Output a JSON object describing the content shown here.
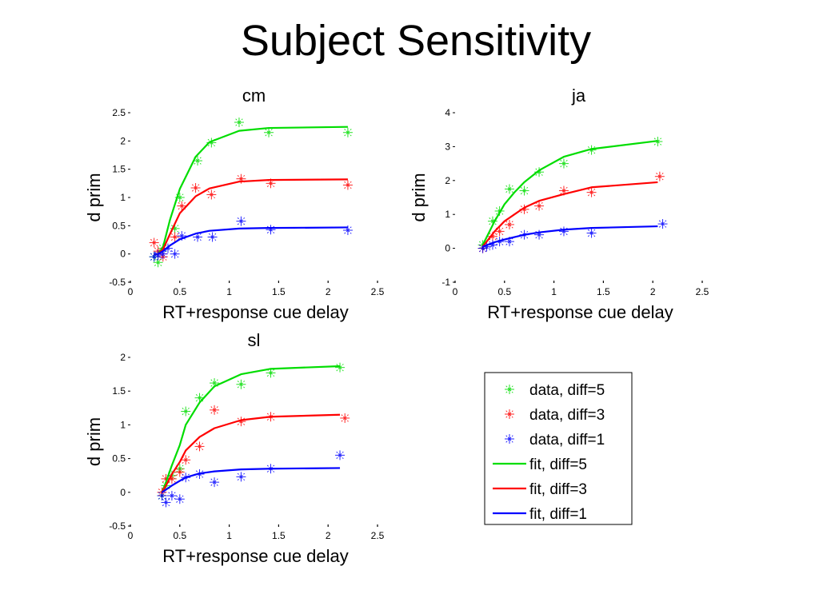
{
  "slide": {
    "title": "Subject Sensitivity"
  },
  "legend": {
    "entries": [
      {
        "label": "data, diff=5",
        "kind": "marker",
        "color": "#00dd00"
      },
      {
        "label": "data, diff=3",
        "kind": "marker",
        "color": "#ff0000"
      },
      {
        "label": "data, diff=1",
        "kind": "marker",
        "color": "#0000ff"
      },
      {
        "label": "fit, diff=5",
        "kind": "line",
        "color": "#00dd00"
      },
      {
        "label": "fit, diff=3",
        "kind": "line",
        "color": "#ff0000"
      },
      {
        "label": "fit, diff=1",
        "kind": "line",
        "color": "#0000ff"
      }
    ]
  },
  "colors": {
    "diff5": "#00dd00",
    "diff3": "#ff0000",
    "diff1": "#0000ff"
  },
  "chart_data": [
    {
      "id": "cm",
      "type": "line",
      "title": "cm",
      "xlabel": "RT+response cue delay",
      "ylabel": "d prim",
      "xlim": [
        0,
        2.5
      ],
      "ylim": [
        -0.5,
        2.5
      ],
      "xticks": [
        "0",
        "0.5",
        "1",
        "1.5",
        "2",
        "2.5"
      ],
      "yticks": [
        "-0.5",
        "0",
        "0.5",
        "1",
        "1.5",
        "2",
        "2.5"
      ],
      "series": [
        {
          "name": "data, diff=5",
          "kind": "points",
          "color": "#00dd00",
          "x": [
            0.24,
            0.28,
            0.33,
            0.45,
            0.5,
            0.68,
            0.82,
            1.1,
            1.4,
            2.2
          ],
          "y": [
            -0.05,
            -0.15,
            0.1,
            0.45,
            1.0,
            1.65,
            1.97,
            2.33,
            2.15,
            2.15
          ]
        },
        {
          "name": "data, diff=3",
          "kind": "points",
          "color": "#ff0000",
          "x": [
            0.24,
            0.28,
            0.33,
            0.45,
            0.52,
            0.66,
            0.82,
            1.12,
            1.42,
            2.2
          ],
          "y": [
            0.2,
            0.05,
            -0.05,
            0.3,
            0.85,
            1.17,
            1.05,
            1.33,
            1.25,
            1.22
          ]
        },
        {
          "name": "data, diff=1",
          "kind": "points",
          "color": "#0000ff",
          "x": [
            0.24,
            0.28,
            0.33,
            0.38,
            0.45,
            0.52,
            0.68,
            0.83,
            1.12,
            1.42,
            2.2
          ],
          "y": [
            -0.05,
            -0.02,
            0.0,
            0.1,
            0.0,
            0.32,
            0.3,
            0.3,
            0.58,
            0.43,
            0.42
          ]
        },
        {
          "name": "fit, diff=5",
          "kind": "line",
          "color": "#00dd00",
          "x": [
            0.24,
            0.28,
            0.33,
            0.4,
            0.5,
            0.66,
            0.8,
            1.1,
            1.4,
            2.2
          ],
          "y": [
            0.0,
            0.0,
            0.12,
            0.6,
            1.15,
            1.72,
            1.98,
            2.18,
            2.23,
            2.25
          ]
        },
        {
          "name": "fit, diff=3",
          "kind": "line",
          "color": "#ff0000",
          "x": [
            0.24,
            0.28,
            0.33,
            0.4,
            0.5,
            0.66,
            0.8,
            1.1,
            1.4,
            2.2
          ],
          "y": [
            0.0,
            0.0,
            0.08,
            0.35,
            0.72,
            1.02,
            1.16,
            1.28,
            1.31,
            1.32
          ]
        },
        {
          "name": "fit, diff=1",
          "kind": "line",
          "color": "#0000ff",
          "x": [
            0.24,
            0.28,
            0.33,
            0.4,
            0.5,
            0.66,
            0.8,
            1.1,
            1.4,
            2.2
          ],
          "y": [
            0.0,
            0.0,
            0.05,
            0.15,
            0.26,
            0.36,
            0.41,
            0.45,
            0.46,
            0.47
          ]
        }
      ]
    },
    {
      "id": "ja",
      "type": "line",
      "title": "ja",
      "xlabel": "RT+response cue delay",
      "ylabel": "d prim",
      "xlim": [
        0,
        2.5
      ],
      "ylim": [
        -1,
        4
      ],
      "xticks": [
        "0",
        "0.5",
        "1",
        "1.5",
        "2",
        "2.5"
      ],
      "yticks": [
        "-1",
        "0",
        "1",
        "2",
        "3",
        "4"
      ],
      "series": [
        {
          "name": "data, diff=5",
          "kind": "points",
          "color": "#00dd00",
          "x": [
            0.28,
            0.38,
            0.45,
            0.55,
            0.7,
            0.85,
            1.1,
            1.38,
            2.05
          ],
          "y": [
            0.1,
            0.8,
            1.1,
            1.75,
            1.7,
            2.25,
            2.5,
            2.9,
            3.15
          ]
        },
        {
          "name": "data, diff=3",
          "kind": "points",
          "color": "#ff0000",
          "x": [
            0.28,
            0.38,
            0.45,
            0.55,
            0.7,
            0.85,
            1.1,
            1.38,
            2.07
          ],
          "y": [
            0.0,
            0.35,
            0.5,
            0.7,
            1.15,
            1.25,
            1.7,
            1.65,
            2.12
          ]
        },
        {
          "name": "data, diff=1",
          "kind": "points",
          "color": "#0000ff",
          "x": [
            0.28,
            0.32,
            0.38,
            0.45,
            0.55,
            0.7,
            0.85,
            1.1,
            1.38,
            2.1
          ],
          "y": [
            0.0,
            0.05,
            0.1,
            0.2,
            0.2,
            0.4,
            0.4,
            0.5,
            0.45,
            0.72
          ]
        },
        {
          "name": "fit, diff=5",
          "kind": "line",
          "color": "#00dd00",
          "x": [
            0.28,
            0.4,
            0.5,
            0.6,
            0.7,
            0.85,
            1.1,
            1.38,
            2.05
          ],
          "y": [
            0.1,
            0.8,
            1.3,
            1.65,
            1.95,
            2.3,
            2.7,
            2.93,
            3.17
          ]
        },
        {
          "name": "fit, diff=3",
          "kind": "line",
          "color": "#ff0000",
          "x": [
            0.28,
            0.4,
            0.5,
            0.6,
            0.7,
            0.85,
            1.1,
            1.38,
            2.05
          ],
          "y": [
            0.05,
            0.5,
            0.8,
            1.0,
            1.2,
            1.4,
            1.6,
            1.8,
            1.95
          ]
        },
        {
          "name": "fit, diff=1",
          "kind": "line",
          "color": "#0000ff",
          "x": [
            0.28,
            0.4,
            0.5,
            0.6,
            0.7,
            0.85,
            1.1,
            1.38,
            2.05
          ],
          "y": [
            0.05,
            0.18,
            0.26,
            0.33,
            0.4,
            0.47,
            0.55,
            0.6,
            0.65
          ]
        }
      ]
    },
    {
      "id": "sl",
      "type": "line",
      "title": "sl",
      "xlabel": "RT+response cue delay",
      "ylabel": "d prim",
      "xlim": [
        0,
        2.5
      ],
      "ylim": [
        -0.5,
        2
      ],
      "xticks": [
        "0",
        "0.5",
        "1",
        "1.5",
        "2",
        "2.5"
      ],
      "yticks": [
        "-0.5",
        "0",
        "0.5",
        "1",
        "1.5",
        "2"
      ],
      "series": [
        {
          "name": "data, diff=5",
          "kind": "points",
          "color": "#00dd00",
          "x": [
            0.32,
            0.36,
            0.42,
            0.5,
            0.56,
            0.7,
            0.85,
            1.12,
            1.42,
            2.12
          ],
          "y": [
            -0.05,
            0.1,
            0.25,
            0.35,
            1.2,
            1.4,
            1.62,
            1.6,
            1.77,
            1.85
          ]
        },
        {
          "name": "data, diff=3",
          "kind": "points",
          "color": "#ff0000",
          "x": [
            0.32,
            0.36,
            0.42,
            0.5,
            0.56,
            0.7,
            0.85,
            1.12,
            1.42,
            2.17
          ],
          "y": [
            0.0,
            0.2,
            0.2,
            0.3,
            0.48,
            0.68,
            1.22,
            1.05,
            1.12,
            1.1
          ]
        },
        {
          "name": "data, diff=1",
          "kind": "points",
          "color": "#0000ff",
          "x": [
            0.32,
            0.36,
            0.42,
            0.5,
            0.56,
            0.7,
            0.85,
            1.12,
            1.42,
            2.12
          ],
          "y": [
            -0.05,
            -0.15,
            -0.05,
            -0.1,
            0.22,
            0.27,
            0.15,
            0.23,
            0.35,
            0.55
          ]
        },
        {
          "name": "fit, diff=5",
          "kind": "line",
          "color": "#00dd00",
          "x": [
            0.32,
            0.36,
            0.42,
            0.5,
            0.56,
            0.7,
            0.85,
            1.12,
            1.42,
            2.12
          ],
          "y": [
            0.0,
            0.15,
            0.4,
            0.7,
            1.0,
            1.33,
            1.57,
            1.75,
            1.83,
            1.87
          ]
        },
        {
          "name": "fit, diff=3",
          "kind": "line",
          "color": "#ff0000",
          "x": [
            0.32,
            0.36,
            0.42,
            0.5,
            0.56,
            0.7,
            0.85,
            1.12,
            1.42,
            2.12
          ],
          "y": [
            0.0,
            0.1,
            0.27,
            0.45,
            0.62,
            0.82,
            0.95,
            1.07,
            1.12,
            1.15
          ]
        },
        {
          "name": "fit, diff=1",
          "kind": "line",
          "color": "#0000ff",
          "x": [
            0.32,
            0.36,
            0.42,
            0.5,
            0.56,
            0.7,
            0.85,
            1.12,
            1.42,
            2.12
          ],
          "y": [
            0.0,
            0.04,
            0.1,
            0.17,
            0.22,
            0.28,
            0.31,
            0.34,
            0.35,
            0.36
          ]
        }
      ]
    }
  ]
}
